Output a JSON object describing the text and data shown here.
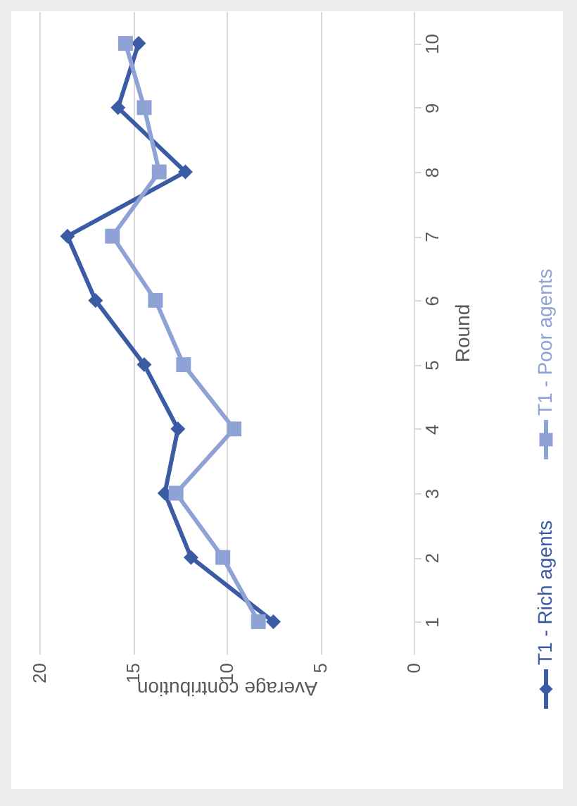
{
  "chart_data": {
    "type": "line",
    "orientation": "horizontal",
    "xlabel": "Average contribution",
    "ylabel": "Round",
    "categories": [
      "10",
      "9",
      "8",
      "7",
      "6",
      "5",
      "4",
      "3",
      "2",
      "1"
    ],
    "xlim": [
      20,
      0
    ],
    "xticks": [
      20,
      15,
      10,
      5,
      0
    ],
    "grid": "x",
    "legend": "right",
    "series": [
      {
        "name": "T1 - Rich agents",
        "color": "#3b5ba5",
        "marker": "diamond",
        "values": [
          14.7,
          15.8,
          12.2,
          18.5,
          17.0,
          14.4,
          12.6,
          13.3,
          11.9,
          7.5
        ]
      },
      {
        "name": "T1 - Poor agents",
        "color": "#8ea2d6",
        "marker": "square",
        "values": [
          15.4,
          14.4,
          13.6,
          16.1,
          13.8,
          12.3,
          9.6,
          12.7,
          10.2,
          8.3
        ]
      }
    ]
  }
}
